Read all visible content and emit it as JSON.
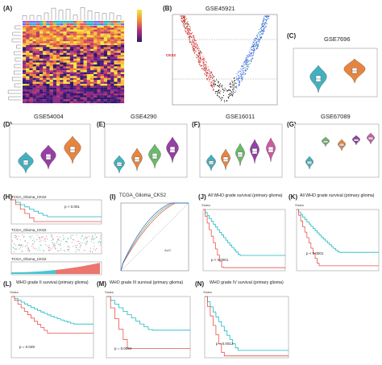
{
  "figure": {
    "labels": [
      "(A)",
      "(B)",
      "(C)",
      "(D)",
      "(E)",
      "(F)",
      "(G)",
      "(H)",
      "(I)",
      "(J)",
      "(K)",
      "(L)",
      "(M)",
      "(N)"
    ]
  },
  "panel_b": {
    "title": "GSE45921",
    "highlight_gene": "CKS2"
  },
  "panel_c": {
    "title": "GSE7696"
  },
  "panel_d": {
    "title": "GSE54004"
  },
  "panel_e": {
    "title": "GSE4290"
  },
  "panel_f": {
    "title": "GSE16011"
  },
  "panel_g": {
    "title": "GSE67089"
  },
  "panel_h": {
    "title_1": "TCGA_Glioma_CKS2",
    "title_2": "TCGA_Glioma_CKS2",
    "title_3": "TCGA_Glioma_CKS2",
    "p_value": "p < 0.001"
  },
  "panel_i": {
    "title": "TCGA_Glioma_CKS2",
    "legend_title": "AUC"
  },
  "panel_j": {
    "title": "All WHO grade survival (primary glioma)",
    "p_value": "p < 0.0001",
    "strata_label": "Strata"
  },
  "panel_k": {
    "title": "All WHO grade survival (primary glioma)",
    "p_value": "p < 0.0001",
    "strata_label": "Strata"
  },
  "panel_l": {
    "title": "WHO grade II survival (primary glioma)",
    "p_value": "p = 0.049",
    "strata_label": "Strata"
  },
  "panel_m": {
    "title": "WHO grade III survival (primary glioma)",
    "p_value": "p = 0.0094",
    "strata_label": "Strata"
  },
  "panel_n": {
    "title": "WHO grade IV survival (primary glioma)",
    "p_value": "p = 0.0013",
    "strata_label": "Strata"
  },
  "colors": {
    "high": "#e8534a",
    "low": "#1ab8c4",
    "violin_orange": "#e3782a",
    "violin_teal": "#2ea8b8",
    "violin_purple": "#8b2a9c",
    "violin_green": "#5bb35a",
    "volcano_red": "#d7191c",
    "volcano_blue": "#2c5fe0",
    "volcano_green": "#3aa35a"
  }
}
